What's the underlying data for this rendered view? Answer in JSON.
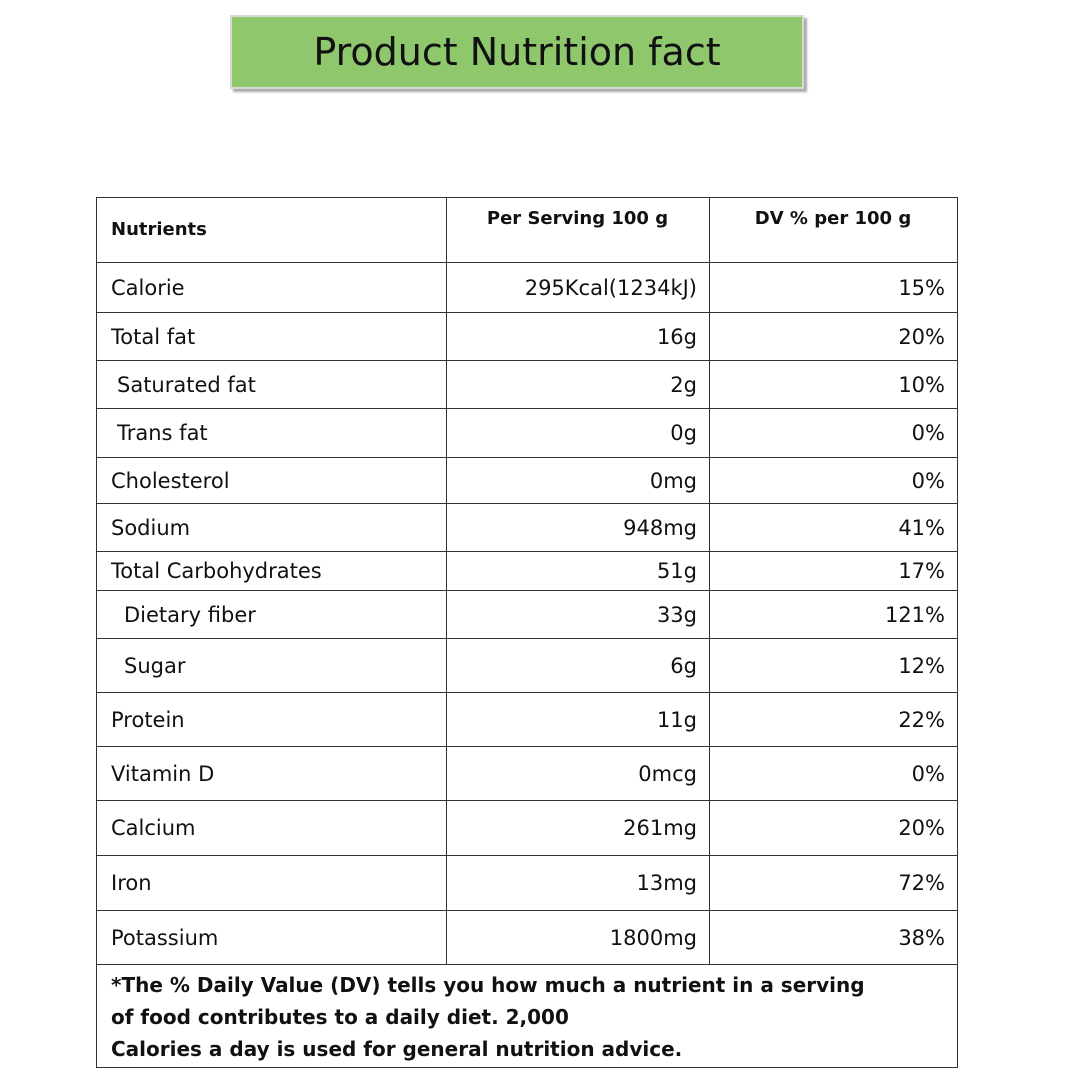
{
  "header": {
    "title": "Product Nutrition fact"
  },
  "table": {
    "columns": [
      "Nutrients",
      "Per Serving 100 g",
      "DV % per 100 g"
    ],
    "rows": [
      [
        "Calorie",
        "295Kcal(1234kJ)",
        "15%"
      ],
      [
        "Total fat",
        "16g",
        "20%"
      ],
      [
        "Saturated fat",
        "2g",
        "10%"
      ],
      [
        "Trans fat",
        "0g",
        "0%"
      ],
      [
        "Cholesterol",
        "0mg",
        "0%"
      ],
      [
        "Sodium",
        "948mg",
        "41%"
      ],
      [
        "Total Carbohydrates",
        "51g",
        "17%"
      ],
      [
        "Dietary fiber",
        "33g",
        "121%"
      ],
      [
        "Sugar",
        "6g",
        "12%"
      ],
      [
        "Protein",
        "11g",
        "22%"
      ],
      [
        "Vitamin D",
        "0mcg",
        "0%"
      ],
      [
        "Calcium",
        "261mg",
        "20%"
      ],
      [
        "Iron",
        "13mg",
        "72%"
      ],
      [
        "Potassium",
        "1800mg",
        "38%"
      ]
    ],
    "footnote": [
      "*The % Daily Value (DV) tells you how much a nutrient in a serving",
      "of food contributes to a daily diet. 2,000",
      "Calories a day is used for general nutrition advice."
    ]
  }
}
